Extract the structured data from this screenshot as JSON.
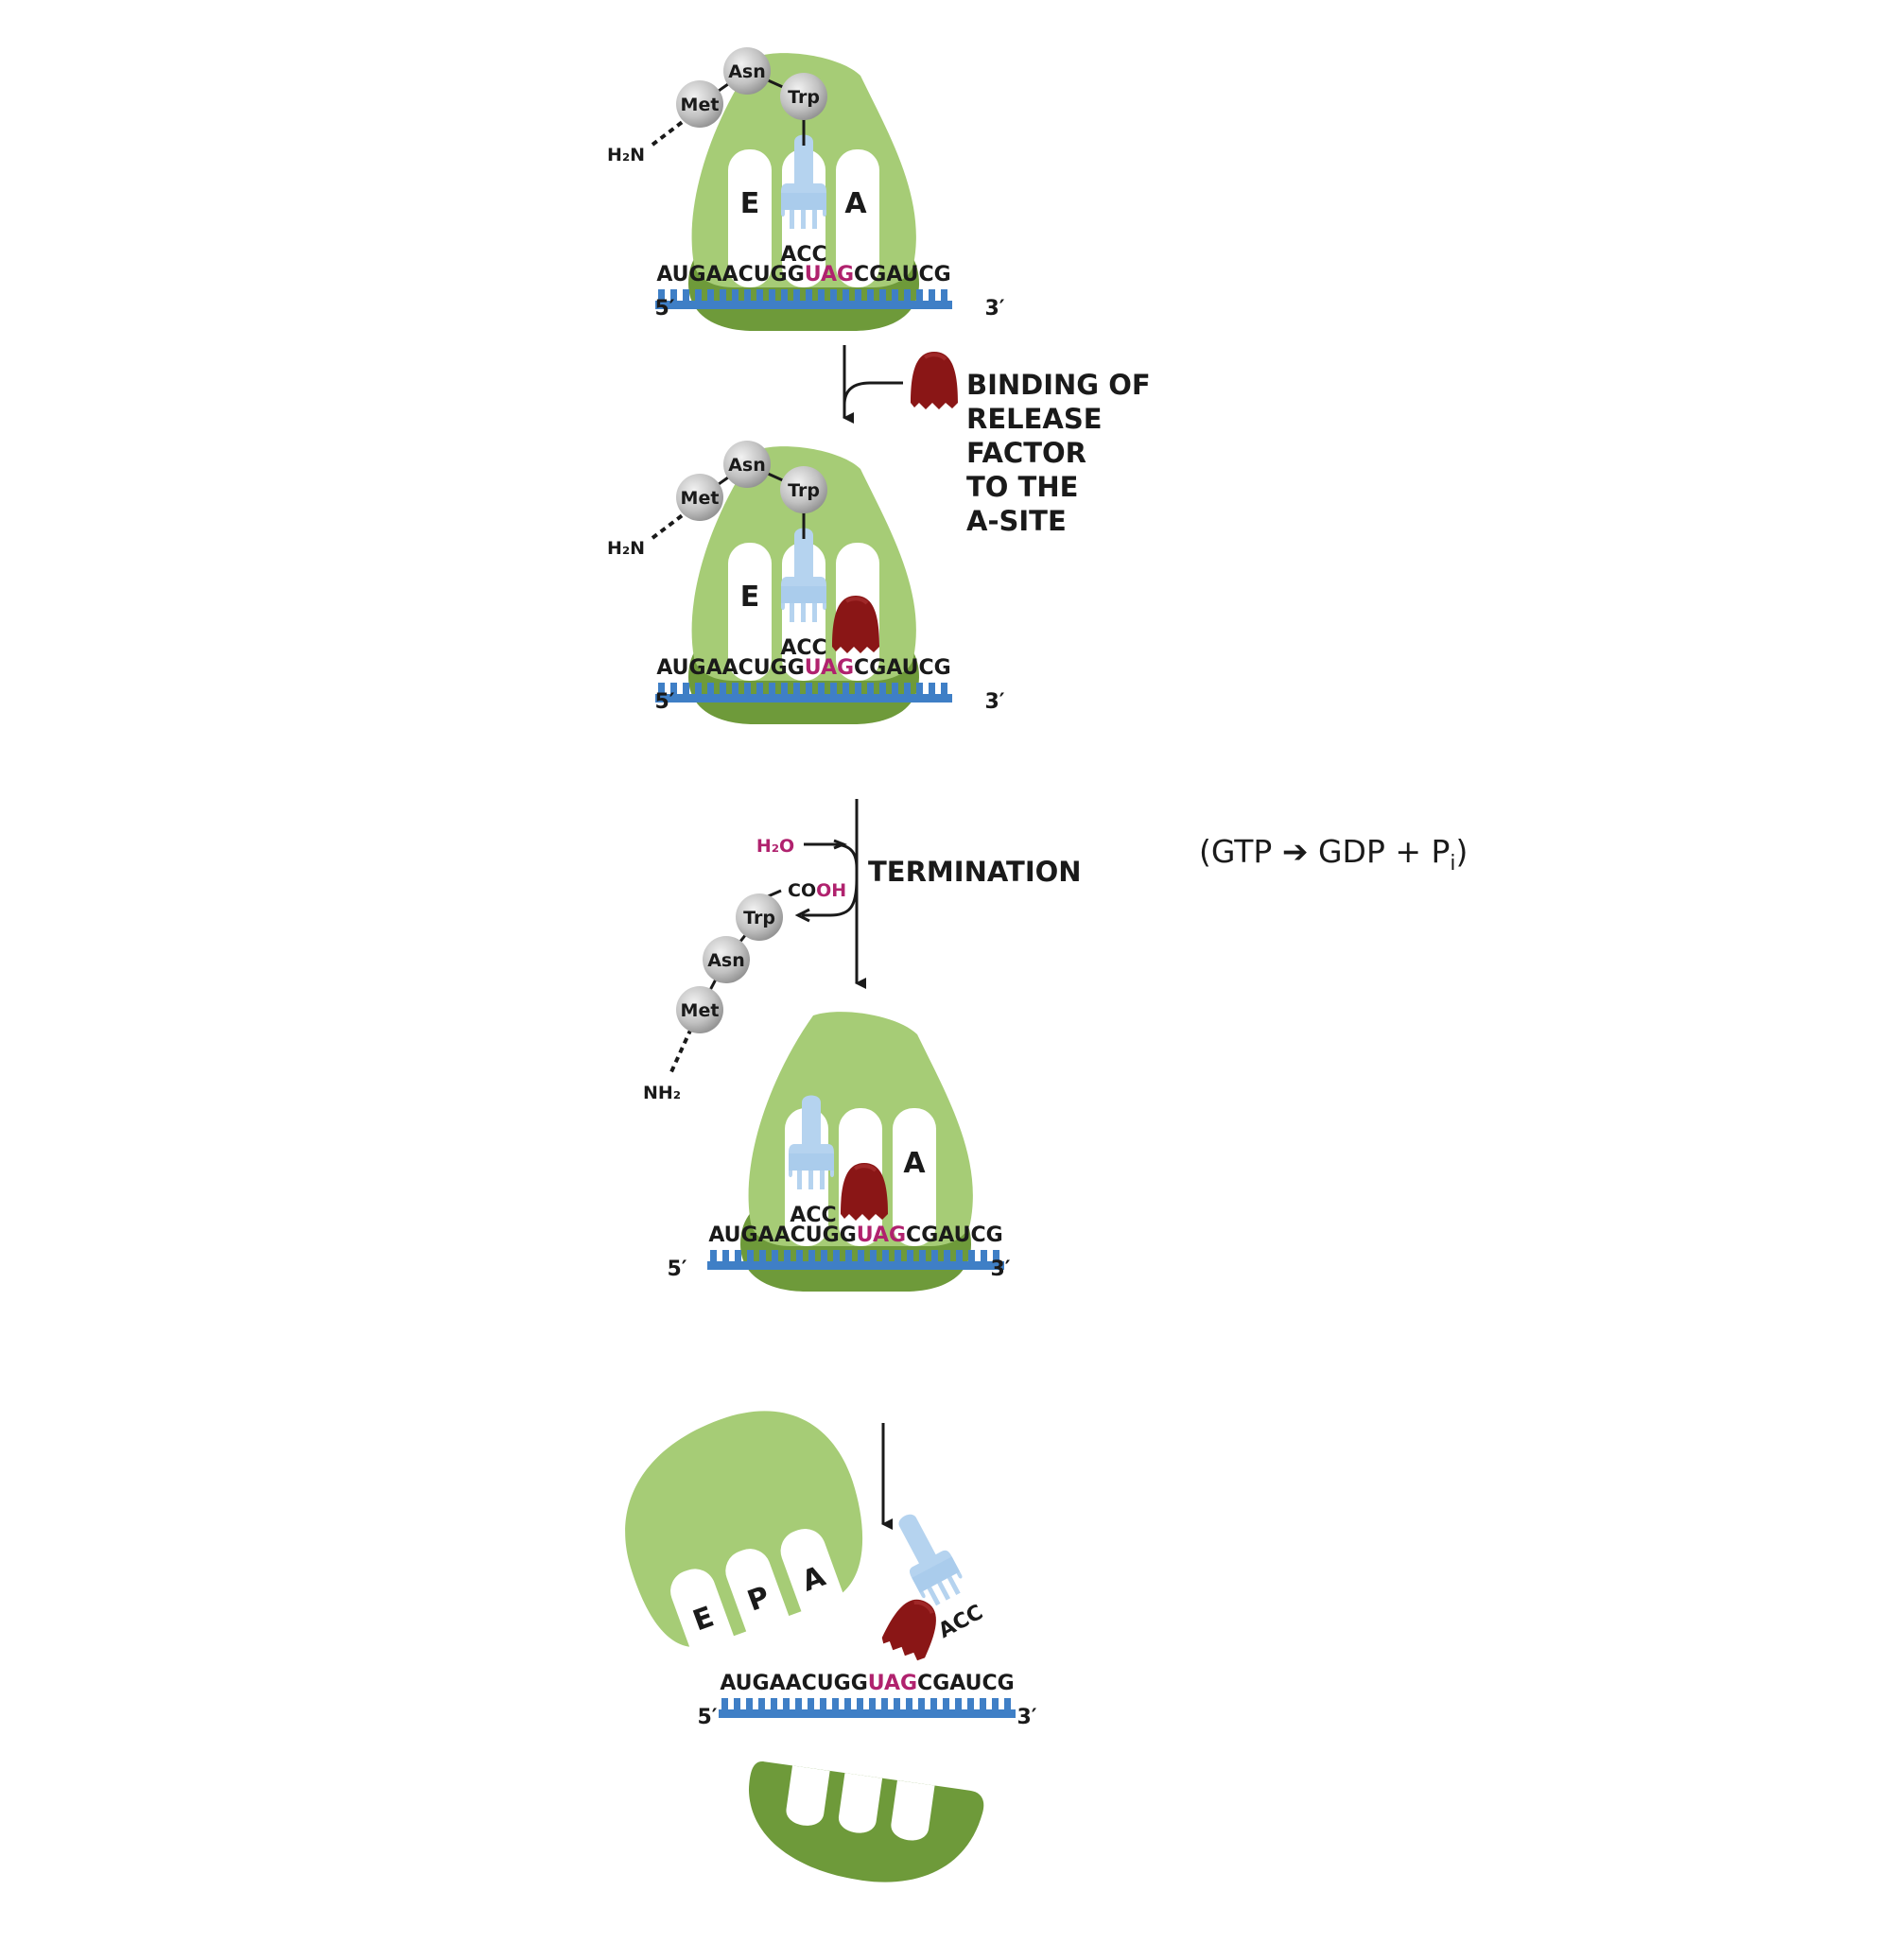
{
  "mrna": {
    "part1": "AUGAACUGG",
    "stop": "UAG",
    "part2": "CGAUCG",
    "five_prime": "5′",
    "three_prime": "3′"
  },
  "trna_anticodon": "ACC",
  "peptide": {
    "aa1": "Met",
    "aa2": "Asn",
    "aa3": "Trp",
    "n_end": "H₂N",
    "n_end_released": "NH₂",
    "c_end_co": "CO",
    "c_end_oh": "OH"
  },
  "sites": {
    "e": "E",
    "p": "P",
    "a": "A"
  },
  "steps": {
    "binding": [
      "BINDING OF",
      "RELEASE",
      "FACTOR",
      "TO THE",
      "A-SITE"
    ],
    "water": "H₂O",
    "termination": "TERMINATION"
  },
  "gtp_note": {
    "open": "(GTP",
    "arrow": "➔",
    "products": "GDP + P",
    "sub": "i",
    "close": ")"
  },
  "colors": {
    "large_subunit": "#a6cc76",
    "small_subunit": "#6e9a3a",
    "mrna_backbone": "#3f7fc6",
    "trna": "#b5d3ef",
    "release_factor": "#8a1616",
    "amino_acid": "#b8b8b8",
    "stop_codon": "#b0226e"
  }
}
